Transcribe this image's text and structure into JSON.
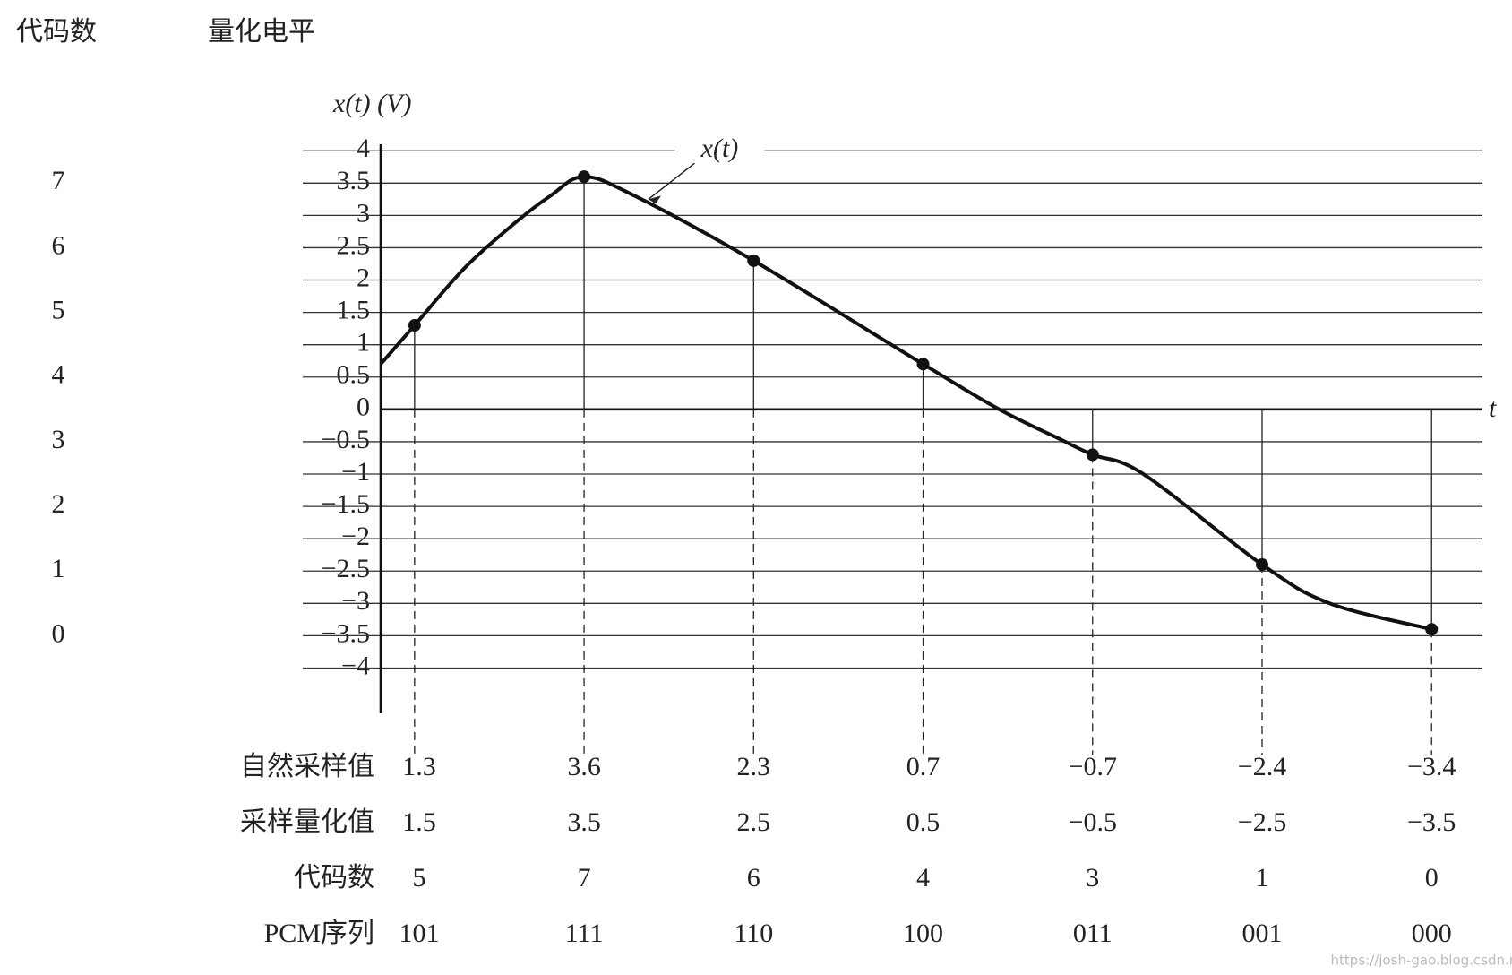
{
  "chart_data": {
    "type": "line",
    "column_headers": [
      "代码数",
      "量化电平"
    ],
    "y_label": "x(t) (V)",
    "x_label": "t",
    "curve_label": "x(t)",
    "ylim": [
      -4.7,
      4.1
    ],
    "xlim": [
      0,
      6.5
    ],
    "yticks": [
      {
        "value": -4,
        "label": "−4"
      },
      {
        "value": -3.5,
        "label": "−3.5"
      },
      {
        "value": -3,
        "label": "−3"
      },
      {
        "value": -2.5,
        "label": "−2.5"
      },
      {
        "value": -2,
        "label": "−2"
      },
      {
        "value": -1.5,
        "label": "−1.5"
      },
      {
        "value": -1,
        "label": "−1"
      },
      {
        "value": -0.5,
        "label": "−0.5"
      },
      0,
      0.5,
      1,
      1.5,
      2,
      2.5,
      3,
      3.5,
      4
    ],
    "codes": [
      7,
      6,
      5,
      4,
      3,
      2,
      1,
      0
    ],
    "code_levels": [
      3.5,
      2.5,
      1.5,
      0.5,
      -0.5,
      -1.5,
      -2.5,
      -3.5
    ],
    "series": [
      {
        "name": "x(t)",
        "color": "#111111",
        "x": [
          0,
          0.2,
          0.5,
          0.8,
          1.0,
          1.2,
          1.5,
          2.2,
          3.2,
          3.65,
          4.0,
          4.2,
          4.5,
          5.2,
          5.6,
          6.2
        ],
        "values": [
          0.7,
          1.3,
          2.2,
          2.9,
          3.3,
          3.6,
          3.3,
          2.3,
          0.7,
          0,
          -0.45,
          -0.7,
          -1.0,
          -2.4,
          -3.0,
          -3.4
        ]
      }
    ],
    "samples": {
      "x": [
        0.2,
        1.2,
        2.2,
        3.2,
        4.2,
        5.2,
        6.2
      ],
      "values": [
        1.3,
        3.6,
        2.3,
        0.7,
        -0.7,
        -2.4,
        -3.4
      ],
      "value_labels": [
        "1.3",
        "3.6",
        "2.3",
        "0.7",
        "−0.7",
        "−2.4",
        "−3.4"
      ],
      "quantized": [
        "1.5",
        "3.5",
        "2.5",
        "0.5",
        "−0.5",
        "−2.5",
        "−3.5"
      ],
      "codes": [
        5,
        7,
        6,
        4,
        3,
        1,
        0
      ],
      "pcm": [
        "101",
        "111",
        "110",
        "100",
        "011",
        "001",
        "000"
      ]
    },
    "row_labels": [
      "自然采样值",
      "采样量化值",
      "代码数",
      "PCM序列"
    ],
    "watermark": "https://josh-gao.blog.csdn.net/"
  }
}
